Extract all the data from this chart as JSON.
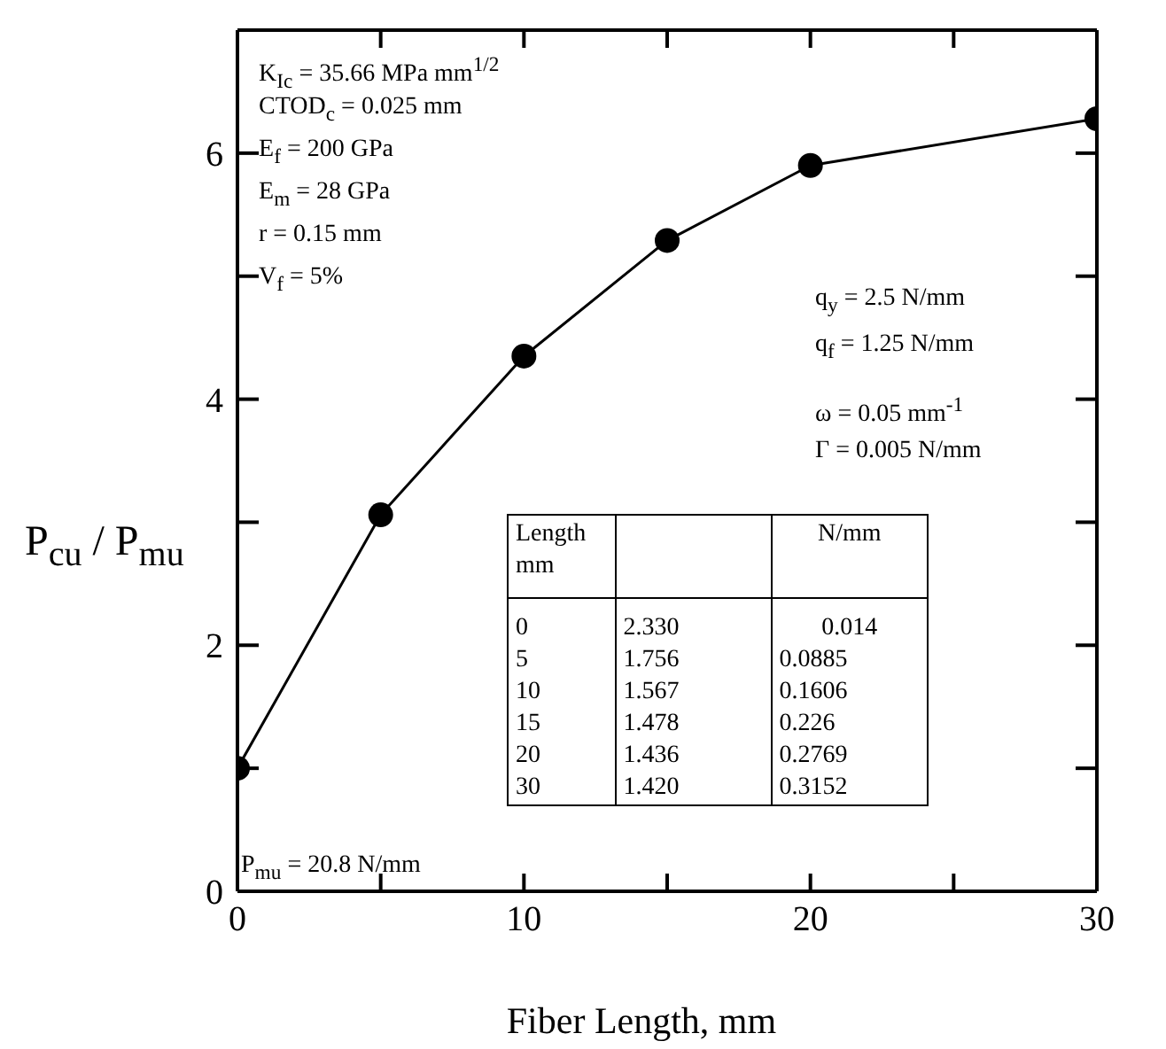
{
  "chart_data": {
    "type": "line",
    "xlabel": "Fiber Length, mm",
    "ylabel": "P$_{cu}$ / P$_{mu}$",
    "x": [
      0,
      5,
      10,
      15,
      20,
      30
    ],
    "series": [
      {
        "color": "#000000",
        "values": [
          1.0,
          3.06,
          4.35,
          5.29,
          5.9,
          6.28
        ]
      }
    ],
    "xlim": [
      0,
      30
    ],
    "xticks": [
      0,
      {
        "value": 5,
        "label": null
      },
      10,
      {
        "value": 15,
        "label": null
      },
      20,
      {
        "value": 25,
        "label": null
      },
      30
    ],
    "ylim": [
      0,
      7
    ],
    "yticks": [
      0,
      {
        "value": 1,
        "label": null
      },
      2,
      {
        "value": 3,
        "label": null
      },
      4,
      {
        "value": 5,
        "label": null
      },
      6,
      {
        "value": 7,
        "label": null
      }
    ],
    "marker": "circle",
    "line_style": "solid",
    "grid": false,
    "legend": false,
    "annotations": [
      "K$_{Ic}$ = 35.66 MPa mm$^{1/2}$",
      "CTOD$_{c}$ = 0.025 mm",
      "E$_{f}$ = 200 GPa",
      "E$_{m}$ = 28 GPa",
      "r = 0.15 mm",
      "V$_{f}$ = 5%",
      "q$_{y}$ = 2.5 N/mm",
      "q$_{f}$ = 1.25 N/mm",
      "ω = 0.05 mm$^{-1}$",
      "Γ = 0.005 N/mm",
      "P$_{mu}$ = 20.8 N/mm",
      "Length\nmm\t\tN/mm",
      "0\t2.330\t0.014",
      "5\t1.756\t0.0885",
      "10\t1.567\t0.1606",
      "15\t1.478\t0.226",
      "20\t1.436\t0.2769",
      "30\t1.420\t0.3152"
    ]
  }
}
